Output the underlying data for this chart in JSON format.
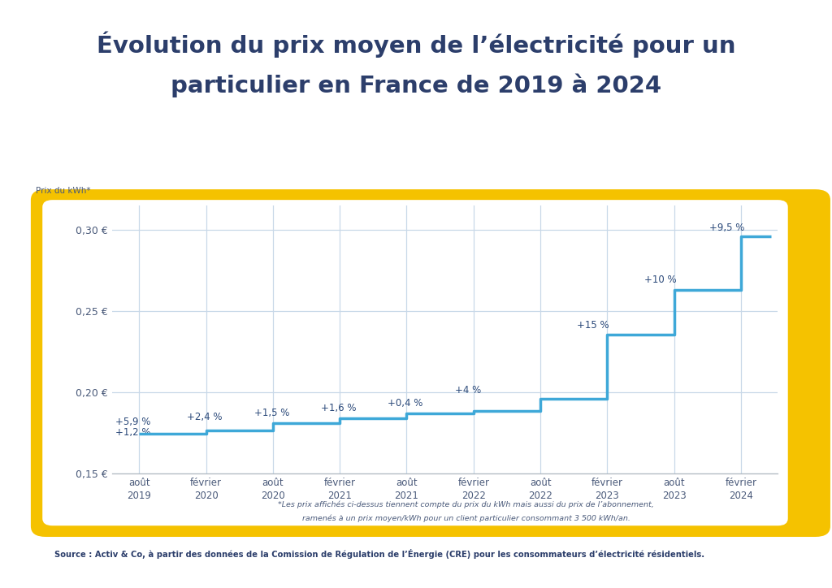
{
  "title_line1": "Évolution du prix moyen de l’électricité pour un",
  "title_line2": "particulier en France de 2019 à 2024",
  "ylabel": "Prix du kWh*",
  "background_color": "#ffffff",
  "chart_bg": "#ffffff",
  "line_color": "#3ea8d8",
  "grid_color": "#c8d8e8",
  "text_color": "#2c3e6b",
  "label_color": "#2c4a7a",
  "tick_color": "#4a5a7a",
  "border_color": "#F5C200",
  "ylim": [
    0.15,
    0.315
  ],
  "yticks": [
    0.15,
    0.2,
    0.25,
    0.3
  ],
  "ytick_labels": [
    "0,15 €",
    "0,20 €",
    "0,25 €",
    "0,30 €"
  ],
  "x_positions": [
    0,
    1,
    2,
    3,
    4,
    5,
    6,
    7,
    8,
    9
  ],
  "x_labels": [
    "août\n2019",
    "février\n2020",
    "août\n2020",
    "février\n2021",
    "août\n2021",
    "février\n2022",
    "août\n2022",
    "février\n2023",
    "août\n2023",
    "février\n2024"
  ],
  "step_values": [
    0.1745,
    0.1765,
    0.1812,
    0.184,
    0.1869,
    0.1885,
    0.196,
    0.2358,
    0.263,
    0.296
  ],
  "source_text": "Source : Activ & Co, à partir des données de la Comission de Régulation de l’Énergie (CRE) pour les consommateurs d’électricité résidentiels.",
  "footnote_line1": "*Les prix affichés ci-dessus tiennent compte du prix du kWh mais aussi du prix de l’abonnement,",
  "footnote_line2": "ramenés à un prix moyen/kWh pour un client particulier consommant 3 500 kWh/an.",
  "pct_labels": [
    "+5,9 %",
    "+1,2 %",
    "+2,4 %",
    "+1,5 %",
    "+1,6 %",
    "+0,4 %",
    "+4 %",
    "+15 %",
    "+10 %",
    "+9,5 %"
  ]
}
